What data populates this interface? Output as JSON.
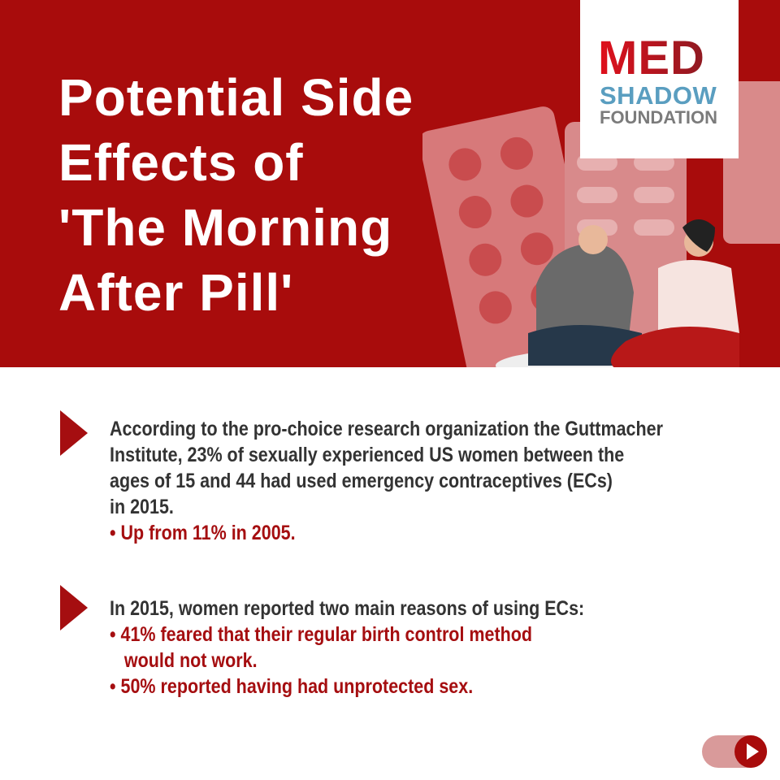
{
  "title_lines": [
    "Potential Side",
    "Effects of",
    "'The Morning",
    "After Pill'"
  ],
  "logo": {
    "med": "MED",
    "shadow": "SHADOW",
    "foundation": "FOUNDATION"
  },
  "section1": {
    "lines": [
      "According to the pro-choice research organization the Guttmacher",
      "Institute, 23% of sexually experienced US women between the",
      "ages of 15 and 44 had used emergency contraceptives (ECs)",
      "in 2015."
    ],
    "bullets": [
      "• Up from 11% in 2005."
    ]
  },
  "section2": {
    "lines": [
      "In 2015, women reported two main reasons of using ECs:"
    ],
    "bullets": [
      "• 41% feared that their regular birth control method",
      "   would not work.",
      "• 50% reported having had unprotected sex."
    ]
  },
  "colors": {
    "brand_red": "#a80c0c",
    "text": "#333333",
    "logo_blue": "#5a9ec0",
    "logo_gray": "#7b7b7b"
  },
  "icons": {
    "bullet": "triangle-right",
    "next": "play-arrow"
  }
}
